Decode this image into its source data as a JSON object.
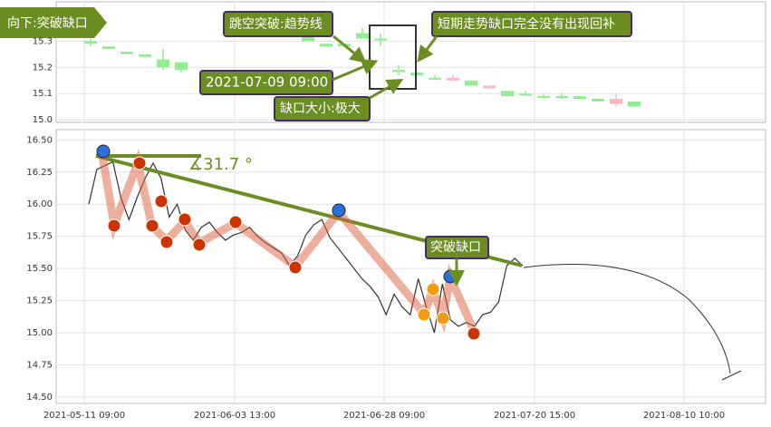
{
  "chart_data": [
    {
      "type": "candlestick",
      "annotation": "向下:突破缺口",
      "candles": [
        {
          "open": 15.29,
          "close": 15.3,
          "high": 15.31,
          "low": 15.28
        },
        {
          "open": 15.27,
          "close": 15.28,
          "high": 15.28,
          "low": 15.27
        },
        {
          "open": 15.25,
          "close": 15.26,
          "high": 15.26,
          "low": 15.25
        },
        {
          "open": 15.24,
          "close": 15.25,
          "high": 15.25,
          "low": 15.24
        },
        {
          "open": 15.2,
          "close": 15.23,
          "high": 15.27,
          "low": 15.19
        },
        {
          "open": 15.19,
          "close": 15.22,
          "high": 15.22,
          "low": 15.18
        },
        null,
        null,
        null,
        null,
        null,
        null,
        {
          "open": 15.3,
          "close": 15.33,
          "high": 15.34,
          "low": 15.3
        },
        {
          "open": 15.28,
          "close": 15.29,
          "high": 15.29,
          "low": 15.28
        },
        {
          "open": 15.28,
          "close": 15.29,
          "high": 15.29,
          "low": 15.28
        },
        {
          "open": 15.31,
          "close": 15.33,
          "high": 15.35,
          "low": 15.31
        },
        {
          "open": 15.31,
          "close": 15.31,
          "high": 15.33,
          "low": 15.28
        },
        {
          "open": 15.19,
          "close": 15.19,
          "high": 15.21,
          "low": 15.17
        },
        {
          "open": 15.17,
          "close": 15.18,
          "high": 15.18,
          "low": 15.17
        },
        {
          "open": 15.16,
          "close": 15.16,
          "high": 15.17,
          "low": 15.16
        },
        {
          "open": 15.16,
          "close": 15.15,
          "high": 15.17,
          "low": 15.15
        },
        {
          "open": 15.13,
          "close": 15.15,
          "high": 15.15,
          "low": 15.13
        },
        {
          "open": 15.13,
          "close": 15.12,
          "high": 15.13,
          "low": 15.12
        },
        {
          "open": 15.09,
          "close": 15.11,
          "high": 15.11,
          "low": 15.09
        },
        {
          "open": 15.1,
          "close": 15.1,
          "high": 15.11,
          "low": 15.09
        },
        {
          "open": 15.09,
          "close": 15.09,
          "high": 15.1,
          "low": 15.08
        },
        {
          "open": 15.09,
          "close": 15.09,
          "high": 15.1,
          "low": 15.08
        },
        {
          "open": 15.08,
          "close": 15.09,
          "high": 15.09,
          "low": 15.08
        },
        {
          "open": 15.07,
          "close": 15.08,
          "high": 15.08,
          "low": 15.07
        },
        {
          "open": 15.08,
          "close": 15.06,
          "high": 15.1,
          "low": 15.05
        },
        {
          "open": 15.05,
          "close": 15.07,
          "high": 15.07,
          "low": 15.05
        }
      ],
      "up_color": "#90ee90",
      "down_color": "#ffb6c1",
      "ylim": [
        14.99,
        15.45
      ],
      "yticks": [
        {
          "value": 15.0,
          "label": "15.0"
        },
        15.1,
        15.2,
        15.3
      ],
      "grid": true,
      "callouts": [
        "跳空突破:趋势线",
        "短期走势缺口完全没有出现回补",
        "2021-07-09 09:00",
        "缺口大小:极大"
      ]
    },
    {
      "type": "line",
      "values": [
        16.0,
        16.27,
        16.3,
        16.33,
        16.05,
        15.88,
        16.05,
        16.2,
        16.32,
        16.2,
        15.9,
        16.0,
        15.8,
        15.72,
        15.82,
        15.86,
        15.78,
        15.72,
        15.76,
        15.78,
        15.82,
        15.75,
        15.7,
        15.66,
        15.62,
        15.52,
        15.6,
        15.76,
        15.84,
        15.88,
        15.74,
        15.66,
        15.58,
        15.5,
        15.42,
        15.36,
        15.28,
        15.14,
        15.3,
        15.2,
        15.14,
        15.42,
        15.2,
        15.0,
        15.38,
        15.1,
        15.05,
        15.08,
        15.05,
        15.14,
        15.16,
        15.24,
        15.52,
        15.58,
        15.52
      ],
      "color": "#333333",
      "ylim": [
        14.45,
        16.58
      ],
      "yticks": [
        {
          "value": 14.5,
          "label": "14.50"
        },
        14.75,
        {
          "value": 15.0,
          "label": "15.00"
        },
        15.25,
        {
          "value": 15.5,
          "label": "15.50"
        },
        15.75,
        {
          "value": 16.0,
          "label": "16.00"
        },
        16.25,
        {
          "value": 16.5,
          "label": "16.50"
        }
      ],
      "xticks": [
        "2021-05-11 09:00",
        "2021-06-03 13:00",
        "2021-06-28 09:00",
        "2021-07-20 15:00",
        "2021-08-10 10:00"
      ],
      "grid": true,
      "angle_label": "∡31.7 °",
      "gap_label": "突破缺口"
    }
  ]
}
